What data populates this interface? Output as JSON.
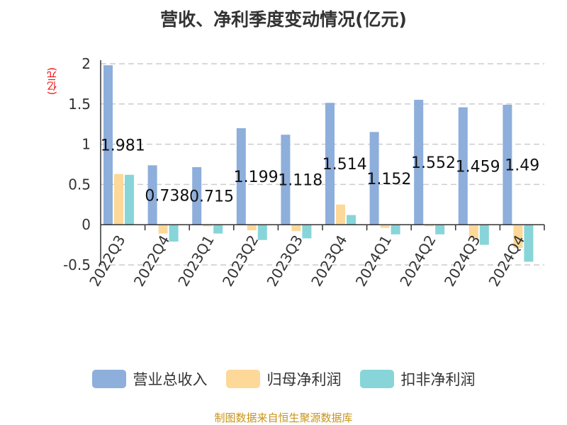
{
  "chart_data": {
    "type": "bar",
    "title": "营收、净利季度变动情况(亿元)",
    "ylabel": "(亿元)",
    "ylim": [
      -0.5,
      2
    ],
    "yticks": [
      "2",
      "1.5",
      "1",
      "0.5",
      "0",
      "-0.5"
    ],
    "ytick_values": [
      2,
      1.5,
      1,
      0.5,
      0,
      -0.5
    ],
    "categories": [
      "2022Q3",
      "2022Q4",
      "2023Q1",
      "2023Q2",
      "2023Q3",
      "2023Q4",
      "2024Q1",
      "2024Q2",
      "2024Q3",
      "2024Q4"
    ],
    "series": [
      {
        "name": "营业总收入",
        "color": "#8eaedb",
        "values": [
          1.981,
          0.738,
          0.715,
          1.199,
          1.118,
          1.514,
          1.152,
          1.552,
          1.459,
          1.49
        ],
        "labels": [
          "1.981",
          "0.738",
          "0.715",
          "1.199",
          "1.118",
          "1.514",
          "1.152",
          "1.552",
          "1.459",
          "1.49"
        ]
      },
      {
        "name": "归母净利润",
        "color": "#fdd898",
        "values": [
          0.63,
          -0.11,
          -0.02,
          -0.07,
          -0.08,
          0.25,
          -0.04,
          -0.02,
          -0.17,
          -0.29
        ]
      },
      {
        "name": "扣非净利润",
        "color": "#87d5d8",
        "values": [
          0.62,
          -0.21,
          -0.11,
          -0.19,
          -0.17,
          0.12,
          -0.12,
          -0.12,
          -0.25,
          -0.46
        ]
      }
    ],
    "grid": true,
    "legend_position": "bottom"
  },
  "source": "制图数据来自恒生聚源数据库"
}
